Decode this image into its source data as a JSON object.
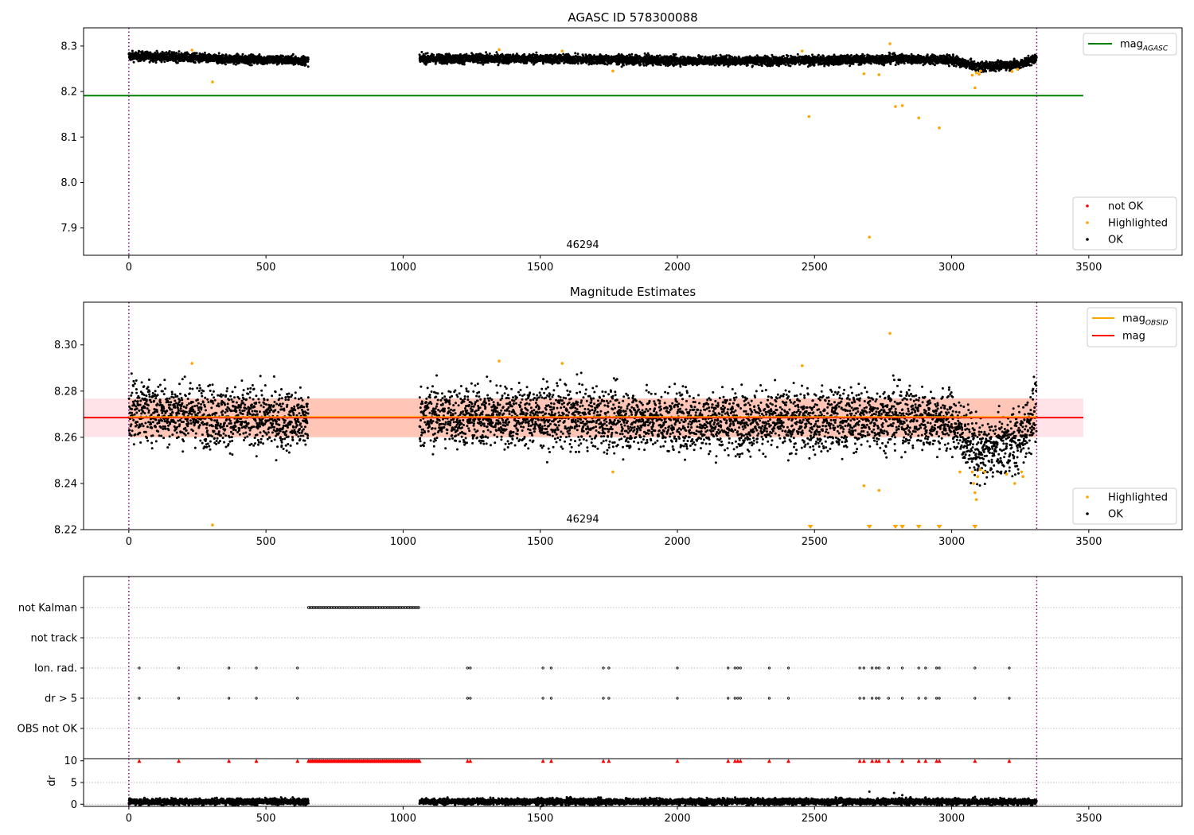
{
  "colors": {
    "ok": "#000000",
    "highlighted": "#ffa500",
    "not_ok": "#ff0000",
    "agasc_line": "#008000",
    "mag_line": "#ff0000",
    "mag_obsid_line": "#ffa500",
    "band_mag": "#ffc0cb",
    "band_obsid": "#ffa07a",
    "obs_marker": "#800080"
  },
  "chart_data": [
    {
      "type": "scatter",
      "title": "AGASC ID 578300088",
      "xlim": [
        -165,
        3840
      ],
      "ylim": [
        7.84,
        8.34
      ],
      "xticks": [
        "0",
        "500",
        "1000",
        "1500",
        "2000",
        "2500",
        "3000",
        "3500"
      ],
      "xtick_values": [
        0,
        500,
        1000,
        1500,
        2000,
        2500,
        3000,
        3500
      ],
      "yticks": [
        "7.9",
        "8.0",
        "8.1",
        "8.2",
        "8.3"
      ],
      "ytick_values": [
        7.9,
        8.0,
        8.1,
        8.2,
        8.3
      ],
      "obsid_label": "46294",
      "obsid_label_x": 1655,
      "obs_boundaries": [
        0,
        3310
      ],
      "mag_agasc": 8.191,
      "mag_agasc_xrange": [
        -165,
        3480
      ],
      "legend_upper": [
        {
          "label": "mag",
          "subscript": "AGASC",
          "kind": "line",
          "color": "#008000"
        }
      ],
      "legend_lower": [
        {
          "label": "not OK",
          "kind": "dot",
          "color": "#ff0000"
        },
        {
          "label": "Highlighted",
          "kind": "dot",
          "color": "#ffa500"
        },
        {
          "label": "OK",
          "kind": "dot",
          "color": "#000000"
        }
      ],
      "series": [
        {
          "name": "OK",
          "segments": [
            {
              "x_start": 0,
              "x_end": 655,
              "center": 8.272,
              "trend": [
                [
                  0,
                  0.006
                ],
                [
                  160,
                  0.004
                ],
                [
                  300,
                  0.0
                ],
                [
                  500,
                  -0.002
                ],
                [
                  655,
                  -0.004
                ]
              ],
              "spread": 0.005
            },
            {
              "x_start": 1060,
              "x_end": 3310,
              "center": 8.272,
              "trend": [
                [
                  1060,
                  0.0
                ],
                [
                  1500,
                  0.0
                ],
                [
                  2000,
                  -0.004
                ],
                [
                  2500,
                  -0.004
                ],
                [
                  2800,
                  0.0
                ],
                [
                  3000,
                  -0.003
                ],
                [
                  3100,
                  -0.018
                ],
                [
                  3250,
                  -0.012
                ],
                [
                  3310,
                  0.002
                ]
              ],
              "spread": 0.005
            }
          ]
        },
        {
          "name": "Highlighted",
          "points": [
            [
              230,
              8.291
            ],
            [
              305,
              8.221
            ],
            [
              1350,
              8.292
            ],
            [
              1580,
              8.289
            ],
            [
              1765,
              8.245
            ],
            [
              2455,
              8.289
            ],
            [
              2480,
              8.145
            ],
            [
              2680,
              8.239
            ],
            [
              2700,
              7.88
            ],
            [
              2735,
              8.237
            ],
            [
              2775,
              8.305
            ],
            [
              2795,
              8.167
            ],
            [
              2820,
              8.169
            ],
            [
              2880,
              8.142
            ],
            [
              2955,
              8.12
            ],
            [
              3085,
              8.208
            ],
            [
              3090,
              8.241
            ],
            [
              3075,
              8.236
            ],
            [
              3100,
              8.238
            ],
            [
              3105,
              8.245
            ],
            [
              3220,
              8.244
            ],
            [
              3240,
              8.249
            ]
          ]
        }
      ]
    },
    {
      "type": "scatter",
      "title": "Magnitude Estimates",
      "xlim": [
        -165,
        3840
      ],
      "ylim": [
        8.22,
        8.3185
      ],
      "xticks": [
        "0",
        "500",
        "1000",
        "1500",
        "2000",
        "2500",
        "3000",
        "3500"
      ],
      "xtick_values": [
        0,
        500,
        1000,
        1500,
        2000,
        2500,
        3000,
        3500
      ],
      "yticks": [
        "8.22",
        "8.24",
        "8.26",
        "8.28",
        "8.30"
      ],
      "ytick_values": [
        8.22,
        8.24,
        8.26,
        8.28,
        8.3
      ],
      "obsid_label": "46294",
      "obsid_label_x": 1655,
      "obs_boundaries": [
        0,
        3310
      ],
      "mag": 8.2685,
      "mag_xrange": [
        -165,
        3480
      ],
      "mag_band": [
        8.2601,
        8.2768
      ],
      "mag_obsid": 8.2685,
      "mag_obsid_xrange": [
        0,
        3310
      ],
      "mag_obsid_band": [
        8.26,
        8.2768
      ],
      "legend_upper": [
        {
          "label": "mag",
          "subscript": "OBSID",
          "kind": "line",
          "color": "#ffa500"
        },
        {
          "label": "mag",
          "subscript": "",
          "kind": "line",
          "color": "#ff0000"
        }
      ],
      "legend_lower": [
        {
          "label": "Highlighted",
          "kind": "dot",
          "color": "#ffa500"
        },
        {
          "label": "OK",
          "kind": "dot",
          "color": "#000000"
        }
      ],
      "series": [
        {
          "name": "OK",
          "segments": [
            {
              "x_start": 0,
              "x_end": 655,
              "center": 8.269,
              "trend": [
                [
                  0,
                  0.003
                ],
                [
                  160,
                  0.002
                ],
                [
                  300,
                  0.0
                ],
                [
                  500,
                  -0.001
                ],
                [
                  655,
                  -0.002
                ]
              ],
              "spread": 0.0065
            },
            {
              "x_start": 1060,
              "x_end": 3310,
              "center": 8.269,
              "trend": [
                [
                  1060,
                  0.0
                ],
                [
                  1500,
                  0.0
                ],
                [
                  2000,
                  -0.002
                ],
                [
                  2500,
                  -0.002
                ],
                [
                  2800,
                  0.0
                ],
                [
                  3000,
                  -0.002
                ],
                [
                  3100,
                  -0.016
                ],
                [
                  3250,
                  -0.01
                ],
                [
                  3310,
                  0.004
                ]
              ],
              "spread": 0.0065
            }
          ]
        },
        {
          "name": "Highlighted",
          "points": [
            [
              230,
              8.292
            ],
            [
              305,
              8.222
            ],
            [
              1350,
              8.293
            ],
            [
              1580,
              8.292
            ],
            [
              1765,
              8.245
            ],
            [
              2455,
              8.291
            ],
            [
              2680,
              8.239
            ],
            [
              2735,
              8.237
            ],
            [
              2775,
              8.305
            ],
            [
              3030,
              8.245
            ],
            [
              3075,
              8.245
            ],
            [
              3080,
              8.24
            ],
            [
              3085,
              8.236
            ],
            [
              3090,
              8.233
            ],
            [
              3095,
              8.243
            ],
            [
              3105,
              8.246
            ],
            [
              3120,
              8.245
            ],
            [
              3200,
              8.244
            ],
            [
              3230,
              8.24
            ],
            [
              3255,
              8.245
            ],
            [
              3260,
              8.243
            ]
          ]
        },
        {
          "name": "Highlighted below range",
          "x": [
            2485,
            2700,
            2795,
            2820,
            2880,
            2955,
            3085
          ]
        }
      ]
    },
    {
      "type": "scatter",
      "title": "",
      "xlim": [
        -165,
        3840
      ],
      "category_labels": [
        "not Kalman",
        "not track",
        "Ion. rad.",
        "dr > 5",
        "OBS not OK"
      ],
      "flags": {
        "not Kalman": {
          "x_start": 655,
          "x_end": 1060
        },
        "not track": {
          "x": []
        },
        "Ion. rad.": {
          "x": [
            38,
            182,
            365,
            465,
            615,
            1235,
            1245,
            1510,
            1540,
            1730,
            1750,
            2000,
            2185,
            2210,
            2220,
            2230,
            2335,
            2405,
            2665,
            2680,
            2710,
            2725,
            2735,
            2770,
            2820,
            2880,
            2905,
            2945,
            2955,
            3085,
            3210
          ]
        },
        "dr > 5": {
          "x": [
            38,
            182,
            365,
            465,
            615,
            1235,
            1245,
            1510,
            1540,
            1730,
            1750,
            2000,
            2185,
            2210,
            2220,
            2230,
            2335,
            2405,
            2665,
            2680,
            2710,
            2725,
            2735,
            2770,
            2820,
            2880,
            2905,
            2945,
            2955,
            3085,
            3210
          ]
        },
        "OBS not OK": {
          "x": []
        }
      },
      "obs_boundaries": [
        0,
        3310
      ]
    },
    {
      "type": "scatter",
      "title": "",
      "ylabel": "dr",
      "xlim": [
        -165,
        3840
      ],
      "ylim": [
        -0.5,
        10.5
      ],
      "xticks": [
        "0",
        "500",
        "1000",
        "1500",
        "2000",
        "2500",
        "3000",
        "3500"
      ],
      "xtick_values": [
        0,
        500,
        1000,
        1500,
        2000,
        2500,
        3000,
        3500
      ],
      "yticks": [
        "0",
        "5",
        "10"
      ],
      "ytick_values": [
        0,
        5,
        10
      ],
      "obs_boundaries": [
        0,
        3310
      ],
      "clipped_dr_value": 10,
      "clipped_dr_x": [
        38,
        182,
        365,
        465,
        615,
        1235,
        1245,
        1510,
        1540,
        1730,
        1750,
        2000,
        2185,
        2210,
        2220,
        2230,
        2335,
        2405,
        2665,
        2680,
        2710,
        2725,
        2735,
        2770,
        2820,
        2880,
        2905,
        2945,
        2955,
        3085,
        3210
      ],
      "clipped_dr_range": [
        655,
        1060
      ],
      "series": [
        {
          "name": "dr",
          "segments": [
            {
              "x_start": 0,
              "x_end": 655,
              "center": 0.6,
              "spread": 0.35
            },
            {
              "x_start": 1060,
              "x_end": 3310,
              "center": 0.6,
              "spread": 0.35
            }
          ],
          "outliers": [
            [
              2700,
              2.9
            ],
            [
              2790,
              2.6
            ],
            [
              2820,
              2.1
            ],
            [
              2850,
              1.6
            ],
            [
              3085,
              1.7
            ]
          ]
        }
      ]
    }
  ]
}
